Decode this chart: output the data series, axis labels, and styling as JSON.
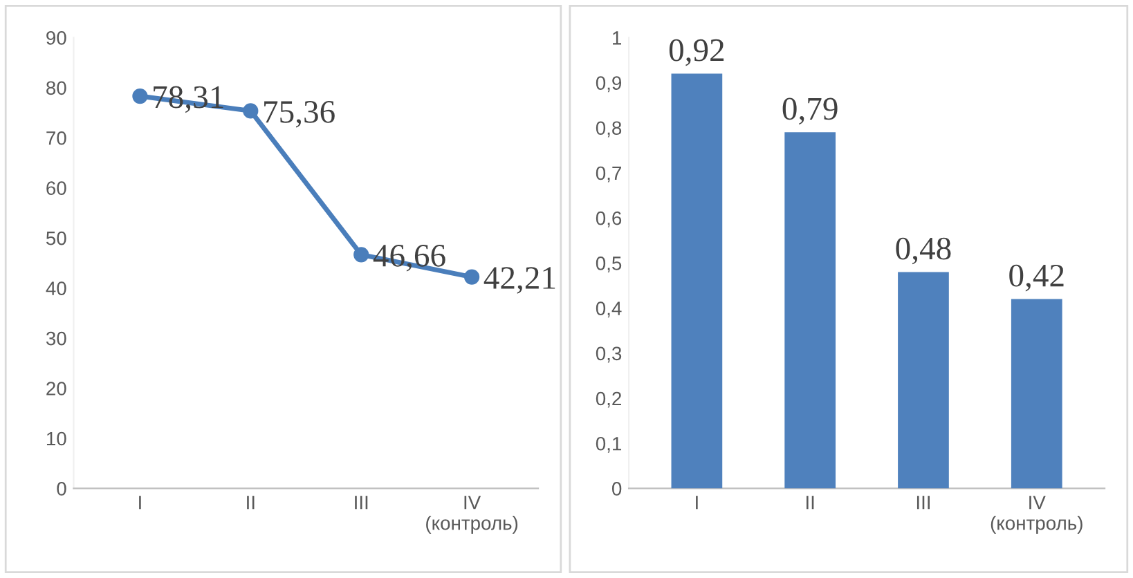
{
  "chart_data": [
    {
      "type": "line",
      "categories": [
        "I",
        "II",
        "III",
        "IV\n(контроль)"
      ],
      "series": [
        {
          "color": "#4a7ebb",
          "values": [
            78.31,
            75.36,
            46.66,
            42.21
          ],
          "value_labels": [
            "78,31",
            "75,36",
            "46,66",
            "42,21"
          ]
        }
      ],
      "ylim": [
        0,
        90
      ],
      "yticks": [
        0,
        10,
        20,
        30,
        40,
        50,
        60,
        70,
        80,
        90
      ],
      "marker": "circle",
      "line_style": "solid",
      "grid": false,
      "legend": false
    },
    {
      "type": "bar",
      "categories": [
        "I",
        "II",
        "III",
        "IV\n(контроль)"
      ],
      "series": [
        {
          "color": "#4f81bd",
          "values": [
            0.92,
            0.79,
            0.48,
            0.42
          ],
          "value_labels": [
            "0,92",
            "0,79",
            "0,48",
            "0,42"
          ]
        }
      ],
      "ylim": [
        0,
        1
      ],
      "yticks": [
        0,
        {
          "value": 0.1,
          "label": "0,1"
        },
        {
          "value": 0.2,
          "label": "0,2"
        },
        {
          "value": 0.3,
          "label": "0,3"
        },
        {
          "value": 0.4,
          "label": "0,4"
        },
        {
          "value": 0.5,
          "label": "0,5"
        },
        {
          "value": 0.6,
          "label": "0,6"
        },
        {
          "value": 0.7,
          "label": "0,7"
        },
        {
          "value": 0.8,
          "label": "0,8"
        },
        {
          "value": 0.9,
          "label": "0,9"
        },
        1
      ],
      "grid": false,
      "legend": false
    }
  ]
}
